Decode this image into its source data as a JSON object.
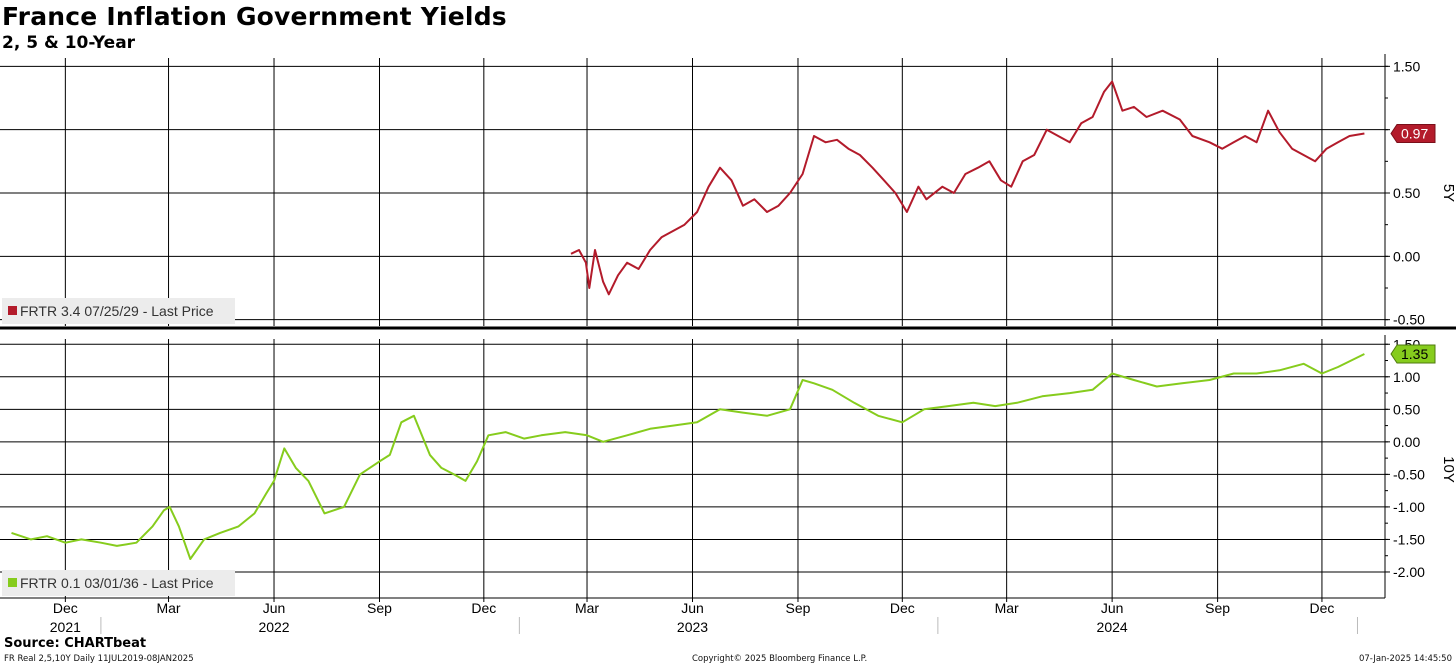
{
  "title": "France Inflation Government Yields",
  "subtitle": "2, 5 & 10-Year",
  "source": "Source: CHARTbeat",
  "footer": {
    "left": "FR Real 2,5,10Y  Daily 11JUL2019-08JAN2025",
    "center": "Copyright© 2025 Bloomberg Finance L.P.",
    "right": "07-Jan-2025 14:45:50"
  },
  "colors": {
    "five_year": "#b31b2b",
    "ten_year": "#86cc1d",
    "grid": "#000000"
  },
  "chart_data": [
    {
      "type": "line",
      "panel": "top",
      "axis_label": "5Y",
      "ylim": [
        -0.55,
        1.55
      ],
      "yticks": [
        1.5,
        1.0,
        0.5,
        0.0,
        -0.5
      ],
      "ytick_labels": [
        "1.50",
        "",
        "0.50",
        "0.00",
        "-0.50"
      ],
      "grid": true,
      "legend": "bottom-left",
      "last_value_label": "0.97",
      "series": [
        {
          "name": "FRTR 3.4 07/25/29 - Last Price",
          "x": [
            "2023-02-15",
            "2023-02-22",
            "2023-02-28",
            "2023-03-03",
            "2023-03-08",
            "2023-03-15",
            "2023-03-20",
            "2023-03-28",
            "2023-04-05",
            "2023-04-15",
            "2023-04-25",
            "2023-05-05",
            "2023-05-15",
            "2023-05-25",
            "2023-06-05",
            "2023-06-15",
            "2023-06-25",
            "2023-07-05",
            "2023-07-15",
            "2023-07-25",
            "2023-08-05",
            "2023-08-15",
            "2023-08-25",
            "2023-09-05",
            "2023-09-15",
            "2023-09-25",
            "2023-10-05",
            "2023-10-15",
            "2023-10-25",
            "2023-11-05",
            "2023-11-15",
            "2023-11-25",
            "2023-12-05",
            "2023-12-15",
            "2023-12-22",
            "2024-01-05",
            "2024-01-15",
            "2024-01-25",
            "2024-02-05",
            "2024-02-15",
            "2024-02-25",
            "2024-03-05",
            "2024-03-15",
            "2024-03-25",
            "2024-04-05",
            "2024-04-15",
            "2024-04-25",
            "2024-05-05",
            "2024-05-15",
            "2024-05-25",
            "2024-06-01",
            "2024-06-10",
            "2024-06-20",
            "2024-07-01",
            "2024-07-15",
            "2024-07-30",
            "2024-08-10",
            "2024-08-25",
            "2024-09-05",
            "2024-09-15",
            "2024-09-25",
            "2024-10-05",
            "2024-10-15",
            "2024-10-25",
            "2024-11-05",
            "2024-11-15",
            "2024-11-25",
            "2024-12-05",
            "2024-12-15",
            "2024-12-25",
            "2025-01-07"
          ],
          "values": [
            0.02,
            0.05,
            -0.05,
            -0.25,
            0.05,
            -0.2,
            -0.3,
            -0.15,
            -0.05,
            -0.1,
            0.05,
            0.15,
            0.2,
            0.25,
            0.35,
            0.55,
            0.7,
            0.6,
            0.4,
            0.45,
            0.35,
            0.4,
            0.5,
            0.65,
            0.95,
            0.9,
            0.92,
            0.85,
            0.8,
            0.7,
            0.6,
            0.5,
            0.35,
            0.55,
            0.45,
            0.55,
            0.5,
            0.65,
            0.7,
            0.75,
            0.6,
            0.55,
            0.75,
            0.8,
            1.0,
            0.95,
            0.9,
            1.05,
            1.1,
            1.3,
            1.38,
            1.15,
            1.18,
            1.1,
            1.15,
            1.08,
            0.95,
            0.9,
            0.85,
            0.9,
            0.95,
            0.9,
            1.15,
            0.98,
            0.85,
            0.8,
            0.75,
            0.85,
            0.9,
            0.95,
            0.97
          ]
        }
      ]
    },
    {
      "type": "line",
      "panel": "bottom",
      "axis_label": "10Y",
      "ylim": [
        -2.4,
        1.55
      ],
      "yticks": [
        1.5,
        1.0,
        0.5,
        0.0,
        -0.5,
        -1.0,
        -1.5,
        -2.0
      ],
      "ytick_labels": [
        "1.50",
        "1.00",
        "0.50",
        "0.00",
        "-0.50",
        "-1.00",
        "-1.50",
        "-2.00"
      ],
      "grid": true,
      "legend": "bottom-left",
      "last_value_label": "1.35",
      "series": [
        {
          "name": "FRTR 0.1 03/01/36 - Last Price",
          "x": [
            "2021-10-15",
            "2021-11-01",
            "2021-11-15",
            "2021-12-01",
            "2021-12-15",
            "2022-01-01",
            "2022-01-15",
            "2022-02-01",
            "2022-02-15",
            "2022-02-25",
            "2022-03-02",
            "2022-03-10",
            "2022-03-20",
            "2022-04-01",
            "2022-04-15",
            "2022-05-01",
            "2022-05-15",
            "2022-05-25",
            "2022-06-01",
            "2022-06-10",
            "2022-06-20",
            "2022-07-01",
            "2022-07-15",
            "2022-08-01",
            "2022-08-15",
            "2022-09-01",
            "2022-09-10",
            "2022-09-20",
            "2022-10-01",
            "2022-10-15",
            "2022-10-25",
            "2022-11-05",
            "2022-11-15",
            "2022-11-25",
            "2022-12-05",
            "2022-12-20",
            "2023-01-05",
            "2023-01-20",
            "2023-02-10",
            "2023-03-01",
            "2023-03-15",
            "2023-04-05",
            "2023-04-25",
            "2023-05-15",
            "2023-06-05",
            "2023-06-25",
            "2023-07-15",
            "2023-08-05",
            "2023-08-25",
            "2023-09-05",
            "2023-09-15",
            "2023-10-01",
            "2023-10-20",
            "2023-11-10",
            "2023-12-01",
            "2023-12-20",
            "2024-01-10",
            "2024-02-01",
            "2024-02-20",
            "2024-03-10",
            "2024-04-01",
            "2024-04-25",
            "2024-05-15",
            "2024-06-01",
            "2024-06-20",
            "2024-07-10",
            "2024-08-01",
            "2024-08-25",
            "2024-09-15",
            "2024-10-05",
            "2024-10-25",
            "2024-11-15",
            "2024-12-01",
            "2024-12-15",
            "2025-01-07"
          ],
          "values": [
            -1.4,
            -1.5,
            -1.45,
            -1.55,
            -1.5,
            -1.55,
            -1.6,
            -1.55,
            -1.3,
            -1.05,
            -1.0,
            -1.3,
            -1.8,
            -1.5,
            -1.4,
            -1.3,
            -1.1,
            -0.8,
            -0.6,
            -0.1,
            -0.4,
            -0.6,
            -1.1,
            -1.0,
            -0.5,
            -0.3,
            -0.2,
            0.3,
            0.4,
            -0.2,
            -0.4,
            -0.5,
            -0.6,
            -0.3,
            0.1,
            0.15,
            0.05,
            0.1,
            0.15,
            0.1,
            0.0,
            0.1,
            0.2,
            0.25,
            0.3,
            0.5,
            0.45,
            0.4,
            0.5,
            0.95,
            0.9,
            0.8,
            0.6,
            0.4,
            0.3,
            0.5,
            0.55,
            0.6,
            0.55,
            0.6,
            0.7,
            0.75,
            0.8,
            1.05,
            0.95,
            0.85,
            0.9,
            0.95,
            1.05,
            1.05,
            1.1,
            1.2,
            1.05,
            1.15,
            1.35
          ]
        }
      ]
    }
  ],
  "x_axis": {
    "months": [
      {
        "label": "Dec",
        "date": "2021-12-01"
      },
      {
        "label": "Mar",
        "date": "2022-03-01"
      },
      {
        "label": "Jun",
        "date": "2022-06-01"
      },
      {
        "label": "Sep",
        "date": "2022-09-01"
      },
      {
        "label": "Dec",
        "date": "2022-12-01"
      },
      {
        "label": "Mar",
        "date": "2023-03-01"
      },
      {
        "label": "Jun",
        "date": "2023-06-01"
      },
      {
        "label": "Sep",
        "date": "2023-09-01"
      },
      {
        "label": "Dec",
        "date": "2023-12-01"
      },
      {
        "label": "Mar",
        "date": "2024-03-01"
      },
      {
        "label": "Jun",
        "date": "2024-06-01"
      },
      {
        "label": "Sep",
        "date": "2024-09-01"
      },
      {
        "label": "Dec",
        "date": "2024-12-01"
      }
    ],
    "years": [
      {
        "label": "2021",
        "date": "2021-12-01"
      },
      {
        "label": "2022",
        "date": "2022-06-01"
      },
      {
        "label": "2023",
        "date": "2023-06-01"
      },
      {
        "label": "2024",
        "date": "2024-06-01"
      }
    ],
    "year_dividers": [
      "2022-01-01",
      "2023-01-01",
      "2024-01-01",
      "2025-01-01"
    ],
    "start": "2021-10-05",
    "end": "2025-01-25"
  }
}
